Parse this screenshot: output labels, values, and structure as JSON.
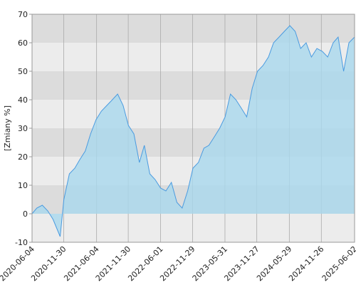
{
  "chart_data": {
    "type": "area",
    "y_label": "[Zmiany %]",
    "x": [
      "2020-06-04",
      "2020-07-01",
      "2020-08-01",
      "2020-09-01",
      "2020-10-01",
      "2020-11-10",
      "2020-12-01",
      "2021-01-01",
      "2021-02-01",
      "2021-03-01",
      "2021-04-01",
      "2021-05-01",
      "2021-06-01",
      "2021-07-01",
      "2021-08-01",
      "2021-09-01",
      "2021-10-01",
      "2021-11-01",
      "2021-12-01",
      "2022-01-01",
      "2022-02-01",
      "2022-03-01",
      "2022-04-01",
      "2022-05-01",
      "2022-06-01",
      "2022-07-01",
      "2022-08-01",
      "2022-09-01",
      "2022-10-01",
      "2022-11-01",
      "2022-12-01",
      "2023-01-01",
      "2023-02-01",
      "2023-03-01",
      "2023-04-01",
      "2023-05-01",
      "2023-06-01",
      "2023-07-01",
      "2023-08-01",
      "2023-09-01",
      "2023-10-01",
      "2023-11-01",
      "2023-12-01",
      "2024-01-01",
      "2024-02-01",
      "2024-03-01",
      "2024-04-01",
      "2024-05-01",
      "2024-06-01",
      "2024-07-01",
      "2024-08-01",
      "2024-09-01",
      "2024-10-01",
      "2024-11-01",
      "2024-12-01",
      "2025-01-01",
      "2025-02-01",
      "2025-03-01",
      "2025-04-01",
      "2025-05-01",
      "2025-06-02"
    ],
    "values": [
      0,
      2,
      3,
      1,
      -2,
      -8,
      5,
      14,
      16,
      19,
      22,
      28,
      33,
      36,
      38,
      40,
      42,
      38,
      31,
      28,
      18,
      24,
      14,
      12,
      9,
      8,
      11,
      4,
      2,
      8,
      16,
      18,
      23,
      24,
      27,
      30,
      34,
      42,
      40,
      37,
      34,
      44,
      50,
      52,
      55,
      60,
      62,
      64,
      66,
      64,
      58,
      60,
      55,
      58,
      57,
      55,
      60,
      62,
      50,
      60,
      62
    ],
    "color": "#4a9be0",
    "fill": "#a9d8ee",
    "xlim": [
      "2020-06-04",
      "2025-06-02"
    ],
    "xticks": [
      "2020-06-04",
      "2020-11-30",
      "2021-06-04",
      "2021-11-30",
      "2022-06-01",
      "2022-11-29",
      "2023-05-31",
      "2023-11-27",
      "2024-05-29",
      "2024-11-26",
      "2025-06-02"
    ],
    "ylim": [
      -10,
      70
    ],
    "yticks": [
      -10,
      0,
      10,
      20,
      30,
      40,
      50,
      60,
      70
    ],
    "grid": true
  }
}
